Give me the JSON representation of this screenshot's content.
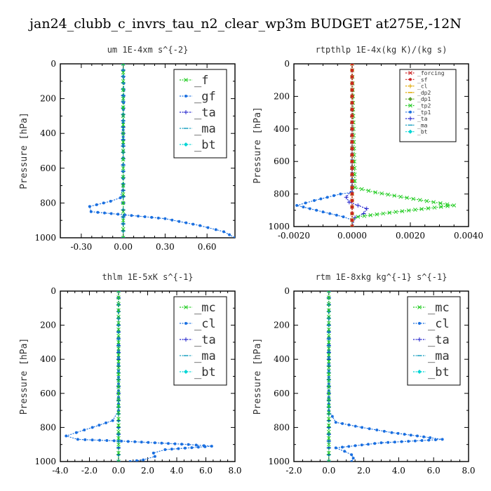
{
  "figure_title": "jan24_clubb_c_invrs_tau_n2_clear_wp3m  BUDGET at275E,-12N",
  "chart_data": [
    {
      "type": "line",
      "title": "um  1E-4xm s^{-2}",
      "ylabel": "Pressure [hPa]",
      "ylim": [
        1000,
        0
      ],
      "xlim": [
        -0.45,
        0.8
      ],
      "xticks": [
        "-0.30",
        "0.00",
        "0.30",
        "0.60"
      ],
      "xtick_values": [
        -0.3,
        0.0,
        0.3,
        0.6
      ],
      "yticks": [
        "0",
        "200",
        "400",
        "600",
        "800",
        "1000"
      ],
      "ytick_values": [
        0,
        200,
        400,
        600,
        800,
        1000
      ],
      "legend_position": "top-right",
      "legend_size": "large",
      "series": [
        {
          "name": "_f",
          "color": "#22cc22",
          "marker": "x",
          "x": [
            0,
            0,
            0,
            0,
            0,
            0,
            0,
            0,
            0,
            0,
            0,
            0
          ],
          "y": [
            0,
            100,
            200,
            300,
            400,
            500,
            600,
            700,
            800,
            900,
            950,
            1000
          ]
        },
        {
          "name": "_gf",
          "color": "#1a6fe0",
          "marker": "dot",
          "x": [
            0,
            0.005,
            0,
            0,
            0,
            -0.02,
            -0.09,
            -0.24,
            -0.23,
            0.3,
            0.55,
            0.72,
            0.8
          ],
          "y": [
            0,
            150,
            300,
            500,
            700,
            770,
            790,
            820,
            850,
            890,
            930,
            965,
            1000
          ]
        },
        {
          "name": "_ta",
          "color": "#2222cc",
          "marker": "plus",
          "x": [
            0,
            0,
            0,
            0
          ],
          "y": [
            0,
            400,
            800,
            1000
          ]
        },
        {
          "name": "_ma",
          "color": "#1aa0c0",
          "marker": "dash",
          "x": [
            0,
            0,
            0,
            0
          ],
          "y": [
            0,
            400,
            800,
            1000
          ]
        },
        {
          "name": "_bt",
          "color": "#00d5d5",
          "marker": "diamond",
          "x": [
            0,
            0,
            0,
            0
          ],
          "y": [
            0,
            400,
            800,
            1000
          ]
        }
      ]
    },
    {
      "type": "line",
      "title": "rtpthlp  1E-4x(kg K)/(kg s)",
      "ylabel": "Pressure [hPa]",
      "ylim": [
        1000,
        0
      ],
      "xlim": [
        -0.002,
        0.004
      ],
      "xticks": [
        "-0.0020",
        "0.0000",
        "0.0020",
        "0.0040"
      ],
      "xtick_values": [
        -0.002,
        0.0,
        0.002,
        0.004
      ],
      "yticks": [
        "0",
        "200",
        "400",
        "600",
        "800",
        "1000"
      ],
      "ytick_values": [
        0,
        200,
        400,
        600,
        800,
        1000
      ],
      "legend_position": "top-right",
      "legend_size": "small",
      "series": [
        {
          "name": "_forcing",
          "color": "#cc2222",
          "marker": "x",
          "x": [
            0,
            0,
            0,
            0
          ],
          "y": [
            0,
            400,
            800,
            1000
          ]
        },
        {
          "name": "_sf",
          "color": "#cc2222",
          "marker": "dot",
          "x": [
            0,
            0,
            0,
            0
          ],
          "y": [
            0,
            400,
            800,
            1000
          ]
        },
        {
          "name": "_cl",
          "color": "#e0a800",
          "marker": "plus",
          "x": [
            0,
            0,
            0,
            0
          ],
          "y": [
            0,
            400,
            800,
            1000
          ]
        },
        {
          "name": "_dp2",
          "color": "#e0a800",
          "marker": "dash",
          "x": [
            0,
            0,
            0,
            0
          ],
          "y": [
            0,
            400,
            800,
            1000
          ]
        },
        {
          "name": "_dp1",
          "color": "#5aa02c",
          "marker": "diamond",
          "x": [
            0,
            0,
            0,
            0
          ],
          "y": [
            0,
            400,
            800,
            1000
          ]
        },
        {
          "name": "_tp2",
          "color": "#22cc22",
          "marker": "x",
          "x": [
            0,
            0.0001,
            0.0008,
            0.0021,
            0.0035,
            0.0015,
            0.0002,
            0,
            0
          ],
          "y": [
            0,
            760,
            790,
            830,
            870,
            910,
            940,
            960,
            1000
          ]
        },
        {
          "name": "_tp1",
          "color": "#1a6fe0",
          "marker": "dot",
          "x": [
            0,
            0,
            -0.0004,
            -0.0013,
            -0.0019,
            -0.001,
            -0.0003,
            0,
            0
          ],
          "y": [
            0,
            790,
            800,
            840,
            870,
            910,
            940,
            960,
            1000
          ]
        },
        {
          "name": "_ta",
          "color": "#2222cc",
          "marker": "plus",
          "x": [
            0,
            0,
            -0.0002,
            -0.0001,
            0.0005,
            0.0004,
            0.0001,
            0
          ],
          "y": [
            0,
            770,
            820,
            850,
            890,
            920,
            945,
            1000
          ]
        },
        {
          "name": "_ma",
          "color": "#1aa0c0",
          "marker": "dash",
          "x": [
            0,
            0,
            0,
            0
          ],
          "y": [
            0,
            400,
            800,
            1000
          ]
        },
        {
          "name": "_bt",
          "color": "#00d5d5",
          "marker": "diamond",
          "x": [
            0,
            0,
            0,
            0
          ],
          "y": [
            0,
            400,
            800,
            1000
          ]
        }
      ]
    },
    {
      "type": "line",
      "title": "thlm  1E-5xK s^{-1}",
      "ylabel": "Pressure [hPa]",
      "ylim": [
        1000,
        0
      ],
      "xlim": [
        -4,
        8
      ],
      "xticks": [
        "-4.0",
        "-2.0",
        "0.0",
        "2.0",
        "4.0",
        "6.0",
        "8.0"
      ],
      "xtick_values": [
        -4,
        -2,
        0,
        2,
        4,
        6,
        8
      ],
      "yticks": [
        "0",
        "200",
        "400",
        "600",
        "800",
        "1000"
      ],
      "ytick_values": [
        0,
        200,
        400,
        600,
        800,
        1000
      ],
      "legend_position": "top-right",
      "legend_size": "large",
      "series": [
        {
          "name": "_mc",
          "color": "#22cc22",
          "marker": "x",
          "x": [
            0,
            0,
            0,
            0,
            0
          ],
          "y": [
            0,
            300,
            600,
            900,
            1000
          ]
        },
        {
          "name": "_cl",
          "color": "#1a6fe0",
          "marker": "dot",
          "x": [
            0,
            0,
            -0.4,
            -1.8,
            -2.9,
            -3.6,
            -2.8,
            0.2,
            4.8,
            6.4,
            3.2,
            2.4,
            2.5,
            1.7,
            0.8
          ],
          "y": [
            0,
            700,
            760,
            800,
            830,
            850,
            870,
            880,
            900,
            910,
            930,
            950,
            970,
            990,
            1000
          ]
        },
        {
          "name": "_ta",
          "color": "#2222cc",
          "marker": "plus",
          "x": [
            0,
            0,
            0,
            0
          ],
          "y": [
            0,
            400,
            800,
            1000
          ]
        },
        {
          "name": "_ma",
          "color": "#1aa0c0",
          "marker": "dash",
          "x": [
            0,
            0,
            0,
            0
          ],
          "y": [
            0,
            400,
            800,
            1000
          ]
        },
        {
          "name": "_bt",
          "color": "#00d5d5",
          "marker": "diamond",
          "x": [
            0,
            0,
            0,
            0
          ],
          "y": [
            0,
            400,
            800,
            1000
          ]
        }
      ]
    },
    {
      "type": "line",
      "title": "rtm  1E-8xkg kg^{-1} s^{-1}",
      "ylabel": "Pressure [hPa]",
      "ylim": [
        1000,
        0
      ],
      "xlim": [
        -2,
        8
      ],
      "xticks": [
        "-2.0",
        "0.0",
        "2.0",
        "4.0",
        "6.0",
        "8.0"
      ],
      "xtick_values": [
        -2,
        0,
        2,
        4,
        6,
        8
      ],
      "yticks": [
        "0",
        "200",
        "400",
        "600",
        "800",
        "1000"
      ],
      "ytick_values": [
        0,
        200,
        400,
        600,
        800,
        1000
      ],
      "legend_position": "top-right",
      "legend_size": "large",
      "series": [
        {
          "name": "_mc",
          "color": "#22cc22",
          "marker": "x",
          "x": [
            0,
            0,
            0,
            0,
            0
          ],
          "y": [
            0,
            300,
            600,
            900,
            1000
          ]
        },
        {
          "name": "_cl",
          "color": "#1a6fe0",
          "marker": "dot",
          "x": [
            0,
            0,
            0.4,
            1.9,
            3.6,
            5.8,
            6.5,
            3.0,
            0.4,
            0.9,
            1.3,
            1.4,
            1.3
          ],
          "y": [
            0,
            700,
            770,
            800,
            830,
            860,
            870,
            890,
            920,
            940,
            960,
            980,
            1000
          ]
        },
        {
          "name": "_ta",
          "color": "#2222cc",
          "marker": "plus",
          "x": [
            0,
            0,
            0,
            0
          ],
          "y": [
            0,
            400,
            800,
            1000
          ]
        },
        {
          "name": "_ma",
          "color": "#1aa0c0",
          "marker": "dash",
          "x": [
            0,
            0,
            0,
            0
          ],
          "y": [
            0,
            400,
            800,
            1000
          ]
        },
        {
          "name": "_bt",
          "color": "#00d5d5",
          "marker": "diamond",
          "x": [
            0,
            0,
            0,
            0
          ],
          "y": [
            0,
            400,
            800,
            1000
          ]
        }
      ]
    }
  ]
}
